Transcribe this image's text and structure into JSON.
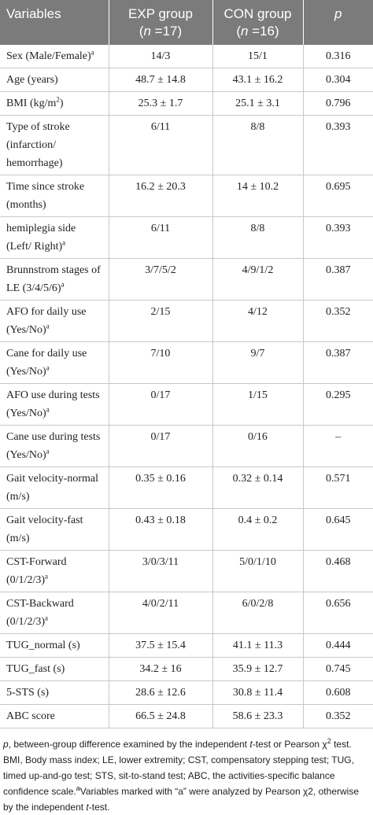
{
  "header": {
    "variables": "Variables",
    "exp": {
      "name": "EXP group",
      "sample": [
        {
          "text": "("
        },
        {
          "text": "n",
          "style": "i"
        },
        {
          "text": " =17)"
        }
      ]
    },
    "con": {
      "name": "CON group",
      "sample": [
        {
          "text": "("
        },
        {
          "text": "n",
          "style": "i"
        },
        {
          "text": " =16)"
        }
      ]
    },
    "p": "p"
  },
  "table": {
    "rows": [
      {
        "label": "Sex (Male/Female)",
        "sup": "a",
        "exp": "14/3",
        "con": "15/1",
        "p": "0.316"
      },
      {
        "label": "Age (years)",
        "exp": "48.7 ± 14.8",
        "con": "43.1 ± 16.2",
        "p": "0.304"
      },
      {
        "label": "BMI (kg/m",
        "sup_mid": "2",
        "label_end": ")",
        "exp": "25.3 ± 1.7",
        "con": "25.1 ± 3.1",
        "p": "0.796"
      },
      {
        "label": "Type of stroke (infarction/ hemorrhage)",
        "exp": "6/11",
        "con": "8/8",
        "p": "0.393"
      },
      {
        "label": "Time since stroke (months)",
        "exp": "16.2 ± 20.3",
        "con": "14 ± 10.2",
        "p": "0.695"
      },
      {
        "label": "hemiplegia side (Left/ Right)",
        "sup": "a",
        "exp": "6/11",
        "con": "8/8",
        "p": "0.393"
      },
      {
        "label": "Brunnstrom stages of LE (3/4/5/6)",
        "sup": "a",
        "exp": "3/7/5/2",
        "con": "4/9/1/2",
        "p": "0.387"
      },
      {
        "label": "AFO for daily use (Yes/No)",
        "sup": "a",
        "exp": "2/15",
        "con": "4/12",
        "p": "0.352"
      },
      {
        "label": "Cane for daily use (Yes/No)",
        "sup": "a",
        "exp": "7/10",
        "con": "9/7",
        "p": "0.387"
      },
      {
        "label": "AFO use during tests (Yes/No)",
        "sup": "a",
        "exp": "0/17",
        "con": "1/15",
        "p": "0.295"
      },
      {
        "label": "Cane use during tests (Yes/No)",
        "sup": "a",
        "exp": "0/17",
        "con": "0/16",
        "p": "–"
      },
      {
        "label": "Gait velocity-normal (m/s)",
        "exp": "0.35 ± 0.16",
        "con": "0.32 ± 0.14",
        "p": "0.571"
      },
      {
        "label": "Gait velocity-fast (m/s)",
        "exp": "0.43 ± 0.18",
        "con": "0.4 ± 0.2",
        "p": "0.645"
      },
      {
        "label": "CST-Forward (0/1/2/3)",
        "sup": "a",
        "exp": "3/0/3/11",
        "con": "5/0/1/10",
        "p": "0.468"
      },
      {
        "label": "CST-Backward (0/1/2/3)",
        "sup": "a",
        "exp": "4/0/2/11",
        "con": "6/0/2/8",
        "p": "0.656"
      },
      {
        "label": "TUG_normal (s)",
        "exp": "37.5 ± 15.4",
        "con": "41.1 ± 11.3",
        "p": "0.444"
      },
      {
        "label": "TUG_fast (s)",
        "exp": "34.2 ± 16",
        "con": "35.9 ± 12.7",
        "p": "0.745"
      },
      {
        "label": "5-STS (s)",
        "exp": "28.6 ± 12.6",
        "con": "30.8 ± 11.4",
        "p": "0.608"
      },
      {
        "label": "ABC score",
        "exp": "66.5 ± 24.8",
        "con": "58.6 ± 23.3",
        "p": "0.352"
      }
    ]
  },
  "footnote": [
    {
      "text": "p",
      "style": "i"
    },
    {
      "text": ", between-group difference examined by the independent "
    },
    {
      "text": "t",
      "style": "i"
    },
    {
      "text": "-test or Pearson χ"
    },
    {
      "text": "2",
      "style": "sup"
    },
    {
      "text": " test. BMI, Body mass index; LE, lower extremity; CST, compensatory stepping test; TUG, timed up-and-go test; STS, sit-to-stand test; ABC, the activities-specific balance confidence scale."
    },
    {
      "text": "a",
      "style": "sup"
    },
    {
      "text": "Variables marked with “a” were analyzed by Pearson χ2, otherwise by the independent "
    },
    {
      "text": "t",
      "style": "i"
    },
    {
      "text": "-test."
    }
  ]
}
